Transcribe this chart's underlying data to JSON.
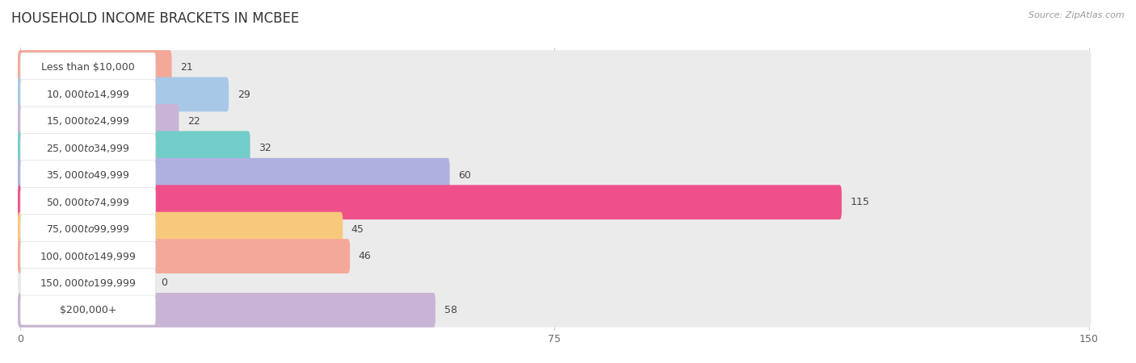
{
  "title": "HOUSEHOLD INCOME BRACKETS IN MCBEE",
  "source": "Source: ZipAtlas.com",
  "categories": [
    "Less than $10,000",
    "$10,000 to $14,999",
    "$15,000 to $24,999",
    "$25,000 to $34,999",
    "$35,000 to $49,999",
    "$50,000 to $74,999",
    "$75,000 to $99,999",
    "$100,000 to $149,999",
    "$150,000 to $199,999",
    "$200,000+"
  ],
  "values": [
    21,
    29,
    22,
    32,
    60,
    115,
    45,
    46,
    0,
    58
  ],
  "bar_colors": [
    "#f4a899",
    "#a8c8e8",
    "#c8b4d4",
    "#72cdc8",
    "#b0b0e0",
    "#f0508a",
    "#f8c87c",
    "#f4a899",
    "#a8c8e8",
    "#c8b4d4"
  ],
  "xlim": [
    -2,
    155
  ],
  "xticks": [
    0,
    75,
    150
  ],
  "bar_height": 0.68,
  "row_bg_color": "#ebebeb",
  "label_bg_color": "#ffffff",
  "background_color": "#ffffff",
  "plot_bg_color": "#ffffff",
  "title_fontsize": 12,
  "label_fontsize": 9,
  "value_fontsize": 9,
  "source_fontsize": 8,
  "text_color": "#444444",
  "grid_color": "#cccccc"
}
